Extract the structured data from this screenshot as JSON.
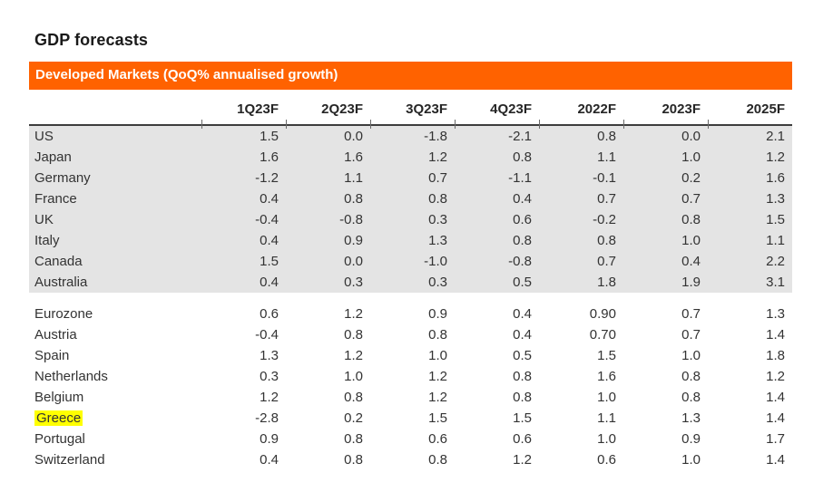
{
  "title": "GDP forecasts",
  "band": {
    "label": "Developed Markets (QoQ% annualised growth)"
  },
  "colors": {
    "accent_orange": "#FF6200",
    "shaded_row_gray": "#E4E4E4",
    "highlight_yellow": "#FFFF00",
    "text": "#333333",
    "header_rule": "#3d3d3d"
  },
  "chart_data": {
    "type": "table",
    "title": "GDP forecasts",
    "subtitle": "Developed Markets (QoQ% annualised growth)",
    "columns": [
      "1Q23F",
      "2Q23F",
      "3Q23F",
      "4Q23F",
      "2022F",
      "2023F",
      "2025F"
    ],
    "groups": [
      {
        "shaded": true,
        "rows": [
          {
            "label": "US",
            "values": [
              "1.5",
              "0.0",
              "-1.8",
              "-2.1",
              "0.8",
              "0.0",
              "2.1"
            ]
          },
          {
            "label": "Japan",
            "values": [
              "1.6",
              "1.6",
              "1.2",
              "0.8",
              "1.1",
              "1.0",
              "1.2"
            ]
          },
          {
            "label": "Germany",
            "values": [
              "-1.2",
              "1.1",
              "0.7",
              "-1.1",
              "-0.1",
              "0.2",
              "1.6"
            ]
          },
          {
            "label": "France",
            "values": [
              "0.4",
              "0.8",
              "0.8",
              "0.4",
              "0.7",
              "0.7",
              "1.3"
            ]
          },
          {
            "label": "UK",
            "values": [
              "-0.4",
              "-0.8",
              "0.3",
              "0.6",
              "-0.2",
              "0.8",
              "1.5"
            ]
          },
          {
            "label": "Italy",
            "values": [
              "0.4",
              "0.9",
              "1.3",
              "0.8",
              "0.8",
              "1.0",
              "1.1"
            ]
          },
          {
            "label": "Canada",
            "values": [
              "1.5",
              "0.0",
              "-1.0",
              "-0.8",
              "0.7",
              "0.4",
              "2.2"
            ]
          },
          {
            "label": "Australia",
            "values": [
              "0.4",
              "0.3",
              "0.3",
              "0.5",
              "1.8",
              "1.9",
              "3.1"
            ]
          }
        ]
      },
      {
        "shaded": false,
        "rows": [
          {
            "label": "Eurozone",
            "values": [
              "0.6",
              "1.2",
              "0.9",
              "0.4",
              "0.90",
              "0.7",
              "1.3"
            ]
          },
          {
            "label": "Austria",
            "values": [
              "-0.4",
              "0.8",
              "0.8",
              "0.4",
              "0.70",
              "0.7",
              "1.4"
            ]
          },
          {
            "label": "Spain",
            "values": [
              "1.3",
              "1.2",
              "1.0",
              "0.5",
              "1.5",
              "1.0",
              "1.8"
            ]
          },
          {
            "label": "Netherlands",
            "values": [
              "0.3",
              "1.0",
              "1.2",
              "0.8",
              "1.6",
              "0.8",
              "1.2"
            ]
          },
          {
            "label": "Belgium",
            "values": [
              "1.2",
              "0.8",
              "1.2",
              "0.8",
              "1.0",
              "0.8",
              "1.4"
            ]
          },
          {
            "label": "Greece",
            "highlighted": true,
            "values": [
              "-2.8",
              "0.2",
              "1.5",
              "1.5",
              "1.1",
              "1.3",
              "1.4"
            ]
          },
          {
            "label": "Portugal",
            "values": [
              "0.9",
              "0.8",
              "0.6",
              "0.6",
              "1.0",
              "0.9",
              "1.7"
            ]
          },
          {
            "label": "Switzerland",
            "values": [
              "0.4",
              "0.8",
              "0.8",
              "1.2",
              "0.6",
              "1.0",
              "1.4"
            ]
          }
        ]
      }
    ]
  }
}
